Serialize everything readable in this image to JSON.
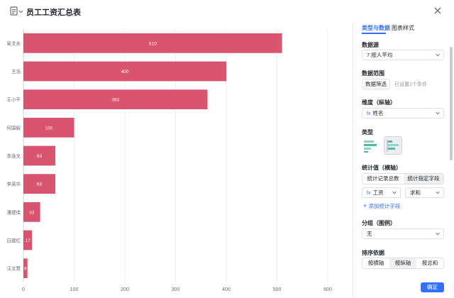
{
  "header": {
    "title": "员工工资汇总表",
    "table_icon": "table-settings-icon",
    "close_icon": "close-icon"
  },
  "panel": {
    "tabs": [
      {
        "label": "类型与数据",
        "active": true
      },
      {
        "label": "图表样式",
        "active": false
      }
    ],
    "datasource": {
      "label": "数据源",
      "value": "7.按人平均"
    },
    "range": {
      "label": "数据范围",
      "button": "数据筛选",
      "hint": "已设置1个条件"
    },
    "dimension": {
      "label": "维度（纵轴）",
      "field_icon": "fx",
      "value": "姓名"
    },
    "type": {
      "label": "类型",
      "options": [
        {
          "name": "vertical-bar-chart-icon",
          "selected": false
        },
        {
          "name": "horizontal-bar-chart-icon",
          "selected": true
        }
      ]
    },
    "metric": {
      "label": "统计值（横轴）",
      "modes": [
        {
          "label": "统计记录总数",
          "active": false
        },
        {
          "label": "统计指定字段",
          "active": true
        }
      ],
      "field_icon": "fx",
      "field": "工资",
      "agg": "求和",
      "add_label": "添加统计字段"
    },
    "group": {
      "label": "分组（图例）",
      "value": "无"
    },
    "sort": {
      "label": "排序依据",
      "options": [
        {
          "label": "按横轴",
          "active": false
        },
        {
          "label": "按纵轴",
          "active": true
        },
        {
          "label": "按总和",
          "active": false
        }
      ]
    },
    "confirm": "确定",
    "accent": "#3370ff"
  },
  "chart_data": {
    "type": "bar",
    "orientation": "horizontal",
    "categories": [
      "吴文夫",
      "王浩",
      "王小平",
      "何国毅",
      "李连文",
      "李英华",
      "潘建佳",
      "白建红",
      "汪文慧"
    ],
    "values": [
      510,
      400,
      363,
      100,
      63,
      63,
      33,
      17,
      8
    ],
    "xlim": [
      0,
      600
    ],
    "xticks": [
      0,
      100,
      200,
      300,
      400,
      500,
      600
    ],
    "grid": true,
    "bar_color": "#d9546e",
    "data_labels": true
  }
}
